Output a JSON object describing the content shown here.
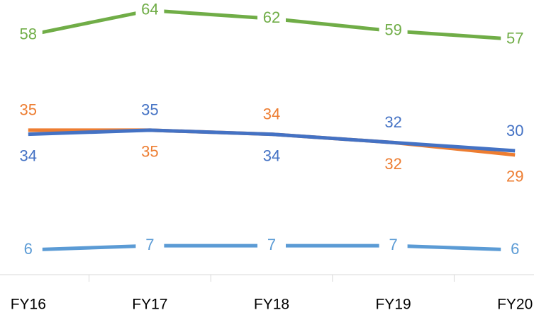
{
  "chart_data": {
    "type": "line",
    "categories": [
      "FY16",
      "FY17",
      "FY18",
      "FY19",
      "FY20"
    ],
    "series": [
      {
        "color": "#70ad47",
        "values": [
          58,
          64,
          62,
          59,
          57
        ]
      },
      {
        "color": "#ed7d31",
        "values": [
          35,
          35,
          34,
          32,
          29
        ]
      },
      {
        "color": "#4472c4",
        "values": [
          34,
          35,
          34,
          32,
          30
        ]
      },
      {
        "color": "#5b9bd5",
        "values": [
          6,
          7,
          7,
          7,
          6
        ]
      }
    ],
    "ylim": [
      0,
      66
    ]
  }
}
